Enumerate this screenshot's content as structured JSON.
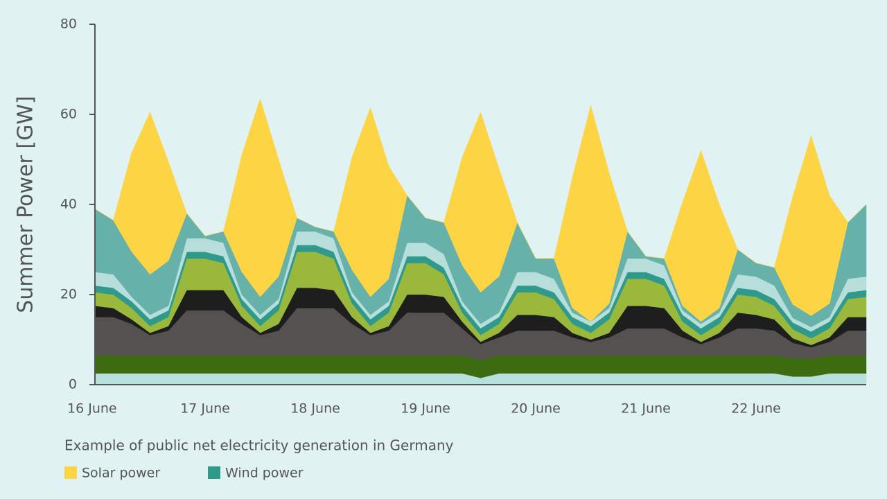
{
  "chart_data": {
    "type": "stacked_area",
    "ylabel": "Summer Power [GW]",
    "caption": "Example of public net electricity generation in Germany",
    "categories": [
      "16 June",
      null,
      null,
      null,
      null,
      null,
      "17 June",
      null,
      null,
      null,
      null,
      null,
      "18 June",
      null,
      null,
      null,
      null,
      null,
      "19 June",
      null,
      null,
      null,
      null,
      null,
      "20 June",
      null,
      null,
      null,
      null,
      null,
      "21 June",
      null,
      null,
      null,
      null,
      null,
      "22 June",
      null,
      null,
      null,
      null,
      null,
      null
    ],
    "ylim": [
      0,
      80
    ],
    "yticks": [
      0,
      20,
      40,
      60,
      80
    ],
    "series": [
      {
        "color": "#b8e0dc",
        "values": [
          2.5,
          2.5,
          2.5,
          2.5,
          2.5,
          2.5,
          2.5,
          2.5,
          2.5,
          2.5,
          2.5,
          2.5,
          2.5,
          2.5,
          2.5,
          2.5,
          2.5,
          2.5,
          2.5,
          2.5,
          2.5,
          1.5,
          2.5,
          2.5,
          2.5,
          2.5,
          2.5,
          2.5,
          2.5,
          2.5,
          2.5,
          2.5,
          2.5,
          2.5,
          2.5,
          2.5,
          2.5,
          2.5,
          1.8,
          1.8,
          2.5,
          2.5,
          2.5
        ]
      },
      {
        "color": "#3d6b10",
        "values": [
          4,
          4,
          4,
          4,
          4,
          4,
          4,
          4,
          4,
          4,
          4,
          4,
          4,
          4,
          4,
          4,
          4,
          4,
          4,
          4,
          4,
          4,
          4,
          4,
          4,
          4,
          4,
          4,
          4,
          4,
          4,
          4,
          4,
          4,
          4,
          4,
          4,
          4,
          4,
          4,
          4,
          4,
          4
        ]
      },
      {
        "color": "#555150",
        "values": [
          8.5,
          8.5,
          7,
          4.5,
          5.5,
          10,
          10,
          10,
          7,
          4.5,
          5.5,
          10.5,
          10.5,
          10.5,
          7,
          4.5,
          5.5,
          9.5,
          9.5,
          9.5,
          6,
          3.5,
          4,
          5.5,
          5.5,
          5.5,
          4,
          3,
          4,
          6,
          6,
          6,
          4,
          2.5,
          4,
          6,
          6,
          5.5,
          3.5,
          2.5,
          3,
          5.5,
          5.5
        ]
      },
      {
        "color": "#1e1e1e",
        "values": [
          2.5,
          2,
          1,
          0.5,
          1,
          4.5,
          4.5,
          4.5,
          1.5,
          0.5,
          1.5,
          4.5,
          4.5,
          4,
          1.5,
          0.5,
          1,
          4,
          4,
          3.5,
          1.5,
          0.5,
          1,
          3.5,
          3.5,
          3,
          1,
          0.5,
          1,
          5,
          5,
          4.5,
          1.5,
          0.5,
          1,
          3.5,
          3,
          2.5,
          1,
          0.5,
          1,
          3,
          3
        ]
      },
      {
        "color": "#9ab83c",
        "values": [
          3,
          3,
          2.5,
          1.5,
          2,
          7,
          7,
          6,
          2.5,
          1.5,
          3,
          8,
          8,
          7,
          3,
          1.5,
          3,
          7,
          7,
          5,
          2,
          1.5,
          2,
          5,
          5,
          4,
          2,
          1.5,
          3,
          6,
          6,
          5,
          2,
          1.5,
          2,
          4,
          4,
          3,
          2,
          1.5,
          2,
          4,
          4.5
        ]
      },
      {
        "name": "Wind power",
        "color": "#2f9a8c",
        "values": [
          1.5,
          1.5,
          1.5,
          1.5,
          1.5,
          1.5,
          1.5,
          1.5,
          1.5,
          1.5,
          1.5,
          1.5,
          1.5,
          1.5,
          1.5,
          1.5,
          1.5,
          1.5,
          1.5,
          1.5,
          1.5,
          1.5,
          1.5,
          1.5,
          1.5,
          1.5,
          1.5,
          1.5,
          1.5,
          1.5,
          1.5,
          1.5,
          1.5,
          1.5,
          1.5,
          1.5,
          1.5,
          1.5,
          1.5,
          1.5,
          1.5,
          1.5,
          1.5
        ]
      },
      {
        "color": "#b7dedb",
        "values": [
          3,
          3,
          1,
          1,
          1,
          3,
          3,
          3,
          1,
          1,
          1,
          3,
          3,
          3,
          1,
          1,
          1,
          3,
          3,
          3,
          1,
          1,
          1,
          3,
          3,
          3,
          1,
          1,
          1,
          3,
          3,
          3,
          1,
          1,
          1,
          3,
          3,
          3,
          1,
          1,
          1,
          3,
          3
        ]
      },
      {
        "color": "#66b2aa",
        "values": [
          14,
          12,
          10,
          9,
          10,
          5.5,
          0.5,
          2.5,
          5,
          4,
          5,
          3,
          1,
          1.5,
          5,
          4,
          5,
          10.5,
          5.5,
          7,
          8,
          7,
          8,
          11,
          3,
          4.5,
          1,
          0,
          1,
          6,
          0.5,
          1.5,
          1,
          0.5,
          1,
          5.5,
          3,
          4,
          3,
          2.5,
          3,
          12.5,
          16
        ]
      },
      {
        "name": "Solar power",
        "color": "#fdd443",
        "values": [
          0,
          0,
          22,
          36,
          22,
          0,
          0,
          0,
          26,
          44,
          26,
          0,
          0,
          0,
          25,
          42,
          25,
          0,
          0,
          0,
          24,
          40,
          24,
          0,
          0,
          0,
          29,
          48,
          29,
          0,
          0,
          0,
          23,
          38,
          23,
          0,
          0,
          0,
          24,
          40,
          24,
          0,
          0
        ]
      }
    ]
  }
}
